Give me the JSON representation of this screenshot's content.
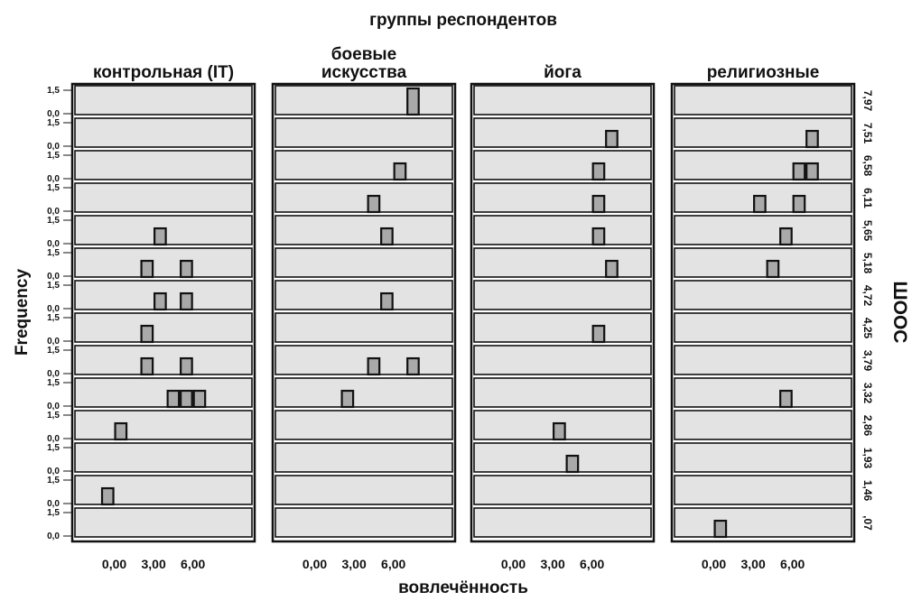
{
  "chart_data": {
    "type": "histogram-grid",
    "title": "группы респондентов",
    "xlabel": "вовлечённость",
    "ylabel": "Frequency",
    "row_label": "ШООС",
    "columns": [
      "контрольная (IT)",
      "боевые\nискусства",
      "йога",
      "религиозные"
    ],
    "rows": [
      "7,97",
      "7,51",
      "6,58",
      "6,11",
      "5,65",
      "5,18",
      "4,72",
      "4,25",
      "3,79",
      "3,32",
      "2,86",
      "1,93",
      "1,46",
      ",07"
    ],
    "x_ticks": [
      "0,00",
      "3,00",
      "6,00"
    ],
    "x_tick_values": [
      0,
      3,
      6
    ],
    "xlim": [
      -3.0,
      10.5
    ],
    "y_ticks": [
      "0,0",
      "1,5"
    ],
    "ylim": [
      0,
      2.1
    ],
    "bars": [
      {
        "row": 0,
        "col": 1,
        "x": 7.5,
        "count": 2
      },
      {
        "row": 1,
        "col": 2,
        "x": 7.5,
        "count": 1
      },
      {
        "row": 1,
        "col": 3,
        "x": 7.5,
        "count": 1
      },
      {
        "row": 2,
        "col": 1,
        "x": 6.5,
        "count": 1
      },
      {
        "row": 2,
        "col": 2,
        "x": 6.5,
        "count": 1
      },
      {
        "row": 2,
        "col": 3,
        "x": 6.5,
        "count": 1
      },
      {
        "row": 2,
        "col": 3,
        "x": 7.5,
        "count": 1
      },
      {
        "row": 3,
        "col": 1,
        "x": 4.5,
        "count": 1
      },
      {
        "row": 3,
        "col": 2,
        "x": 6.5,
        "count": 1
      },
      {
        "row": 3,
        "col": 3,
        "x": 3.5,
        "count": 1
      },
      {
        "row": 3,
        "col": 3,
        "x": 6.5,
        "count": 1
      },
      {
        "row": 4,
        "col": 0,
        "x": 3.5,
        "count": 1
      },
      {
        "row": 4,
        "col": 1,
        "x": 5.5,
        "count": 1
      },
      {
        "row": 4,
        "col": 2,
        "x": 6.5,
        "count": 1
      },
      {
        "row": 4,
        "col": 3,
        "x": 5.5,
        "count": 1
      },
      {
        "row": 5,
        "col": 0,
        "x": 2.5,
        "count": 1
      },
      {
        "row": 5,
        "col": 0,
        "x": 5.5,
        "count": 1
      },
      {
        "row": 5,
        "col": 2,
        "x": 7.5,
        "count": 1
      },
      {
        "row": 5,
        "col": 3,
        "x": 4.5,
        "count": 1
      },
      {
        "row": 6,
        "col": 0,
        "x": 3.5,
        "count": 1
      },
      {
        "row": 6,
        "col": 0,
        "x": 5.5,
        "count": 1
      },
      {
        "row": 6,
        "col": 1,
        "x": 5.5,
        "count": 1
      },
      {
        "row": 7,
        "col": 0,
        "x": 2.5,
        "count": 1
      },
      {
        "row": 7,
        "col": 2,
        "x": 6.5,
        "count": 1
      },
      {
        "row": 8,
        "col": 0,
        "x": 2.5,
        "count": 1
      },
      {
        "row": 8,
        "col": 0,
        "x": 5.5,
        "count": 1
      },
      {
        "row": 8,
        "col": 1,
        "x": 4.5,
        "count": 1
      },
      {
        "row": 8,
        "col": 1,
        "x": 7.5,
        "count": 1
      },
      {
        "row": 9,
        "col": 0,
        "x": 4.5,
        "count": 1
      },
      {
        "row": 9,
        "col": 0,
        "x": 5.5,
        "count": 1
      },
      {
        "row": 9,
        "col": 0,
        "x": 6.5,
        "count": 1
      },
      {
        "row": 9,
        "col": 1,
        "x": 2.5,
        "count": 1
      },
      {
        "row": 9,
        "col": 3,
        "x": 5.5,
        "count": 1
      },
      {
        "row": 10,
        "col": 0,
        "x": 0.5,
        "count": 1
      },
      {
        "row": 10,
        "col": 2,
        "x": 3.5,
        "count": 1
      },
      {
        "row": 11,
        "col": 2,
        "x": 4.5,
        "count": 1
      },
      {
        "row": 12,
        "col": 0,
        "x": -0.5,
        "count": 1
      },
      {
        "row": 13,
        "col": 3,
        "x": 0.5,
        "count": 1
      }
    ],
    "grid": false,
    "colors": {
      "panel_fill": "#e3e3e3",
      "bar_fill": "#a9a9a9",
      "bar_stroke": "#111111",
      "frame": "#111111"
    }
  }
}
